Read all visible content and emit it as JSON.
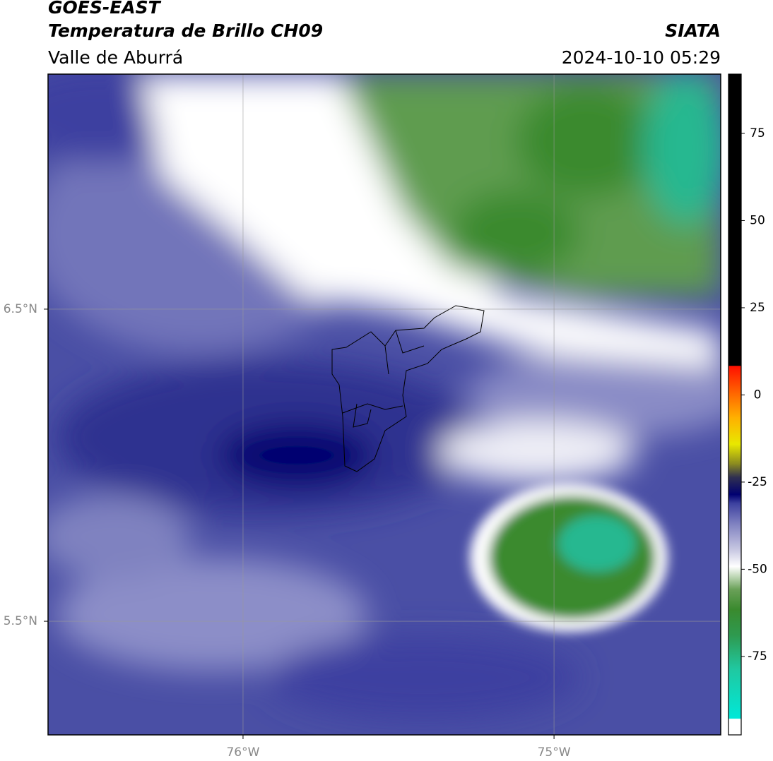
{
  "header": {
    "title": "GOES-EAST",
    "subtitle": "Temperatura de Brillo CH09",
    "region": "Valle de Aburrá",
    "source": "SIATA",
    "datetime": "2024-10-10 05:29"
  },
  "map": {
    "xlim": [
      -76.627,
      -74.464
    ],
    "ylim": [
      5.136,
      7.253
    ],
    "xticks": [
      {
        "value": -76,
        "label": "76°W"
      },
      {
        "value": -75,
        "label": "75°W"
      }
    ],
    "yticks": [
      {
        "value": 6.5,
        "label": "6.5°N"
      },
      {
        "value": 5.5,
        "label": "5.5°N"
      }
    ],
    "grid": true
  },
  "colorbar": {
    "lim": [
      -97.5,
      92
    ],
    "ticks": [
      -75,
      -50,
      -25,
      0,
      25,
      50,
      75
    ]
  }
}
